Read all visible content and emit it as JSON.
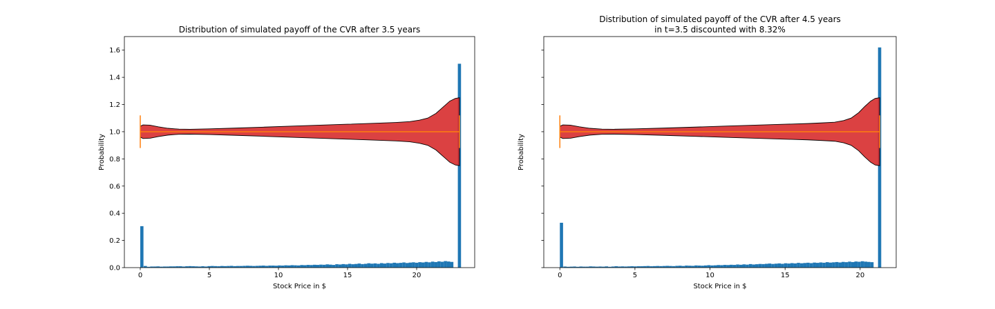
{
  "colors": {
    "violin_fill": "#d62728",
    "violin_edge": "#000000",
    "median_line": "#ff7f0e",
    "histogram": "#1f77b4"
  },
  "chart_data": [
    {
      "type": "bar",
      "subtype": "histogram-with-violin-overlay",
      "title_lines": [
        "Distribution of simulated payoff of the CVR after 3.5 years"
      ],
      "xlabel": "Stock Price in $",
      "ylabel": "Probability",
      "xlim": [
        -1.15,
        24.2
      ],
      "ylim": [
        0,
        1.7
      ],
      "xticks": [
        0,
        5,
        10,
        15,
        20
      ],
      "yticks": [
        0.0,
        0.2,
        0.4,
        0.6,
        0.8,
        1.0,
        1.2,
        1.4,
        1.6
      ],
      "show_yticklabels": true,
      "grid": false,
      "x_max": 23.1,
      "histogram": {
        "bin_width": 0.231,
        "spikes": [
          {
            "x": 0.0,
            "value": 0.305
          },
          {
            "x": 22.98,
            "value": 1.5
          }
        ],
        "values": [
          0.012,
          0.006,
          0.008,
          0.008,
          0.009,
          0.007,
          0.008,
          0.008,
          0.009,
          0.009,
          0.01,
          0.01,
          0.008,
          0.01,
          0.011,
          0.01,
          0.009,
          0.008,
          0.01,
          0.008,
          0.011,
          0.012,
          0.011,
          0.01,
          0.012,
          0.011,
          0.012,
          0.013,
          0.011,
          0.012,
          0.012,
          0.013,
          0.014,
          0.013,
          0.012,
          0.013,
          0.014,
          0.015,
          0.013,
          0.015,
          0.015,
          0.014,
          0.016,
          0.015,
          0.017,
          0.016,
          0.018,
          0.017,
          0.016,
          0.019,
          0.018,
          0.02,
          0.019,
          0.021,
          0.02,
          0.022,
          0.021,
          0.024,
          0.022,
          0.02,
          0.025,
          0.023,
          0.026,
          0.024,
          0.028,
          0.025,
          0.027,
          0.03,
          0.026,
          0.028,
          0.032,
          0.029,
          0.031,
          0.028,
          0.033,
          0.03,
          0.034,
          0.032,
          0.036,
          0.033,
          0.035,
          0.038,
          0.034,
          0.037,
          0.039,
          0.036,
          0.04,
          0.038,
          0.042,
          0.039,
          0.044,
          0.041,
          0.046,
          0.043,
          0.048,
          0.045,
          0.042
        ]
      },
      "violin": {
        "center": 1.0,
        "x_start": 0.0,
        "x_end": 23.1,
        "profile_x": [
          0,
          0.2,
          0.7,
          1.3,
          2.0,
          2.8,
          3.6,
          5,
          7,
          9,
          11,
          13,
          15,
          17,
          18.5,
          19.5,
          20.2,
          20.8,
          21.4,
          21.9,
          22.4,
          22.8,
          23.1
        ],
        "profile_half_width": [
          0.04,
          0.05,
          0.048,
          0.036,
          0.025,
          0.019,
          0.018,
          0.021,
          0.027,
          0.034,
          0.041,
          0.048,
          0.055,
          0.062,
          0.068,
          0.074,
          0.085,
          0.1,
          0.135,
          0.18,
          0.225,
          0.245,
          0.25
        ],
        "whisker_halfheight": 0.12
      }
    },
    {
      "type": "bar",
      "subtype": "histogram-with-violin-overlay",
      "title_lines": [
        "Distribution of simulated payoff of the CVR after 4.5 years",
        "in t=3.5 discounted with 8.32%"
      ],
      "xlabel": "Stock Price in $",
      "ylabel": "Probability",
      "xlim": [
        -1.07,
        22.4
      ],
      "ylim": [
        0,
        1.7
      ],
      "xticks": [
        0,
        5,
        10,
        15,
        20
      ],
      "yticks": [
        0.0,
        0.2,
        0.4,
        0.6,
        0.8,
        1.0,
        1.2,
        1.4,
        1.6
      ],
      "show_yticklabels": false,
      "grid": false,
      "x_max": 21.3,
      "histogram": {
        "bin_width": 0.213,
        "spikes": [
          {
            "x": 0.0,
            "value": 0.33
          },
          {
            "x": 21.19,
            "value": 1.62
          }
        ],
        "values": [
          0.008,
          0.006,
          0.007,
          0.008,
          0.006,
          0.008,
          0.007,
          0.007,
          0.009,
          0.008,
          0.007,
          0.008,
          0.007,
          0.009,
          0.006,
          0.008,
          0.01,
          0.008,
          0.009,
          0.008,
          0.009,
          0.01,
          0.009,
          0.01,
          0.01,
          0.011,
          0.012,
          0.01,
          0.011,
          0.012,
          0.011,
          0.012,
          0.013,
          0.012,
          0.011,
          0.013,
          0.014,
          0.012,
          0.015,
          0.014,
          0.013,
          0.016,
          0.015,
          0.014,
          0.016,
          0.018,
          0.016,
          0.017,
          0.019,
          0.018,
          0.02,
          0.019,
          0.021,
          0.02,
          0.023,
          0.021,
          0.024,
          0.022,
          0.026,
          0.023,
          0.025,
          0.027,
          0.026,
          0.028,
          0.03,
          0.027,
          0.029,
          0.031,
          0.028,
          0.032,
          0.03,
          0.033,
          0.031,
          0.035,
          0.032,
          0.034,
          0.036,
          0.033,
          0.037,
          0.035,
          0.038,
          0.036,
          0.04,
          0.037,
          0.039,
          0.041,
          0.038,
          0.042,
          0.04,
          0.044,
          0.041,
          0.045,
          0.043,
          0.047,
          0.044,
          0.042,
          0.04
        ]
      },
      "violin": {
        "center": 1.0,
        "x_start": 0.0,
        "x_end": 21.3,
        "profile_x": [
          0,
          0.2,
          0.7,
          1.3,
          2.0,
          2.8,
          3.6,
          5,
          7,
          9,
          11,
          13,
          15,
          16.5,
          17.5,
          18.3,
          18.9,
          19.4,
          19.9,
          20.3,
          20.7,
          21.0,
          21.3
        ],
        "profile_half_width": [
          0.04,
          0.05,
          0.048,
          0.036,
          0.025,
          0.019,
          0.018,
          0.021,
          0.027,
          0.034,
          0.041,
          0.048,
          0.055,
          0.06,
          0.065,
          0.07,
          0.082,
          0.1,
          0.14,
          0.185,
          0.225,
          0.245,
          0.25
        ],
        "whisker_halfheight": 0.12
      }
    }
  ]
}
